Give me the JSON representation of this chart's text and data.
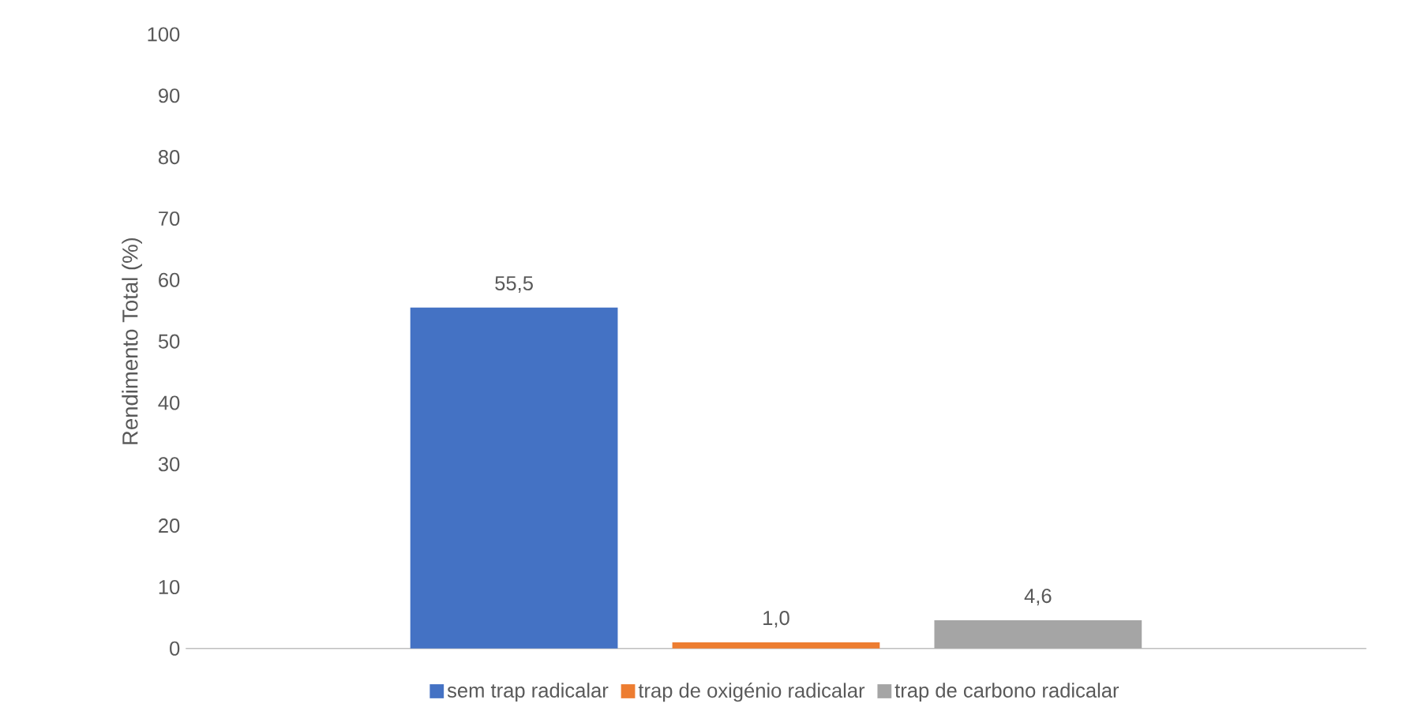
{
  "chart_data": {
    "type": "bar",
    "ylabel": "Rendimento Total (%)",
    "categories": [
      null
    ],
    "series": [
      {
        "name": "sem trap radicalar",
        "color": "#4472c4",
        "values": [
          55.5
        ],
        "value_labels": [
          "55,5"
        ]
      },
      {
        "name": "trap de oxigénio radicalar",
        "color": "#ed7d31",
        "values": [
          1.0
        ],
        "value_labels": [
          "1,0"
        ]
      },
      {
        "name": "trap de carbono radicalar",
        "color": "#a5a5a5",
        "values": [
          4.6
        ],
        "value_labels": [
          "4,6"
        ]
      }
    ],
    "ylim": [
      0,
      100
    ],
    "yticks": [
      0,
      10,
      20,
      30,
      40,
      50,
      60,
      70,
      80,
      90,
      100
    ],
    "legend": "bottom"
  }
}
